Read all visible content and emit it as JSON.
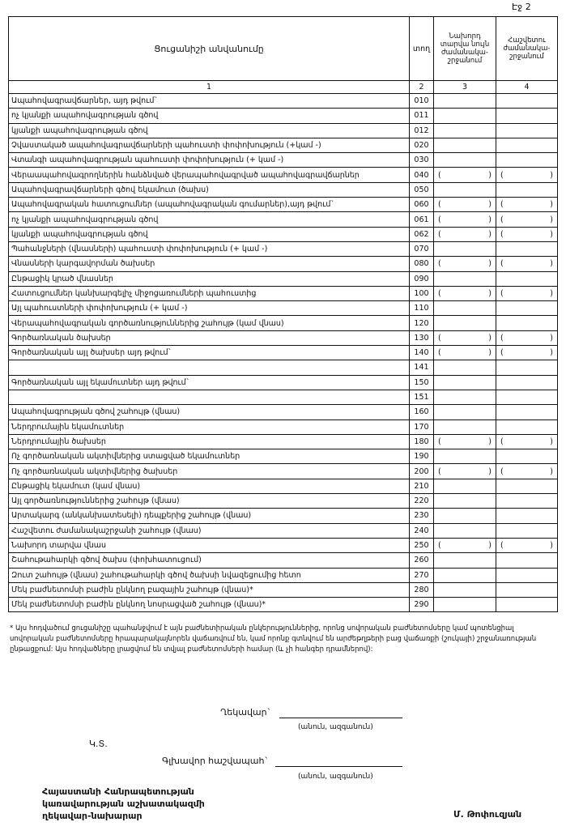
{
  "page_label": "Էջ 2",
  "table": {
    "header": {
      "name": "Ցուցանիշի անվանումը",
      "code": "տող",
      "col3": "Նախորդ տարվա նույն ժամանակա-շրջանում",
      "col4": "Հաշվետու ժամանակա-շրջանում"
    },
    "column_numbers": [
      "1",
      "2",
      "3",
      "4"
    ],
    "rows": [
      {
        "name": "Ապահովագրավճարներ, այդ թվում`",
        "code": "010"
      },
      {
        "name": "ոչ կյանքի ապահովագրության գծով",
        "code": "011"
      },
      {
        "name": "կյանքի ապահովագրության գծով",
        "code": "012"
      },
      {
        "name": "Չվաստակած ապահովագրավճարների պահուստի փոփոխություն (+կամ -)",
        "code": "020"
      },
      {
        "name": "Վտանգի ապահովագրության պահուստի փոփոխություն (+ կամ -)",
        "code": "030"
      },
      {
        "name": "Վերաապահովագրողներին հանձնված վերապահովագրված ապահովագրավճարներ",
        "code": "040",
        "col3": [
          "(",
          ")"
        ],
        "col4": [
          "(",
          ")"
        ]
      },
      {
        "name": "Ապահովագրավճարների գծով եկամուտ (ծախս)",
        "code": "050"
      },
      {
        "name": "Ապահովագրական հատուցումներ (ապահովագրական գումարներ),այդ թվում`",
        "code": "060",
        "col3": [
          "(",
          ")"
        ],
        "col4": [
          "(",
          ")"
        ]
      },
      {
        "name": "ոչ կյանքի ապահովագրության գծով",
        "code": "061",
        "col3": [
          "(",
          ")"
        ],
        "col4": [
          "(",
          ")"
        ]
      },
      {
        "name": "կյանքի ապահովագրության գծով",
        "code": "062",
        "col3": [
          "(",
          ")"
        ],
        "col4": [
          "(",
          ")"
        ]
      },
      {
        "name": "Պահանջների (վնասների) պահուստի փոփոխություն (+ կամ -)",
        "code": "070"
      },
      {
        "name": "Վնասների կարգավորման ծախսեր",
        "code": "080",
        "col3": [
          "(",
          ")"
        ],
        "col4": [
          "(",
          ")"
        ]
      },
      {
        "name": "Ընթացիկ կրած վնասներ",
        "code": "090"
      },
      {
        "name": "Հատուցումներ կանխարգելիչ միջոցառումների պահուստից",
        "code": "100",
        "col3": [
          "(",
          ")"
        ],
        "col4": [
          "(",
          ")"
        ]
      },
      {
        "name": "Այլ պահուստների փոփոխություն (+ կամ -)",
        "code": "110"
      },
      {
        "name": "Վերապահովագրական գործառնություններից շահույթ (կամ վնաս)",
        "code": "120"
      },
      {
        "name": "Գործառնական ծախսեր",
        "code": "130",
        "col3": [
          "(",
          ")"
        ],
        "col4": [
          "(",
          ")"
        ]
      },
      {
        "name": "Գործառնական այլ ծախսեր այդ թվում`",
        "code": "140",
        "col3": [
          "(",
          ")"
        ],
        "col4": [
          "(",
          ")"
        ]
      },
      {
        "code": "141"
      },
      {
        "name": "Գործառնական այլ եկամուտներ այդ թվում`",
        "code": "150"
      },
      {
        "code": "151"
      },
      {
        "name": "Ապահովագրության գծով շահույթ (վնաս)",
        "code": "160"
      },
      {
        "name": "Ներդրումային եկամուտներ",
        "code": "170"
      },
      {
        "name": "Ներդրումային ծախսեր",
        "code": "180",
        "col3": [
          "(",
          ")"
        ],
        "col4": [
          "(",
          ")"
        ]
      },
      {
        "name": "Ոչ գործառնական ակտիվներից ստացված եկամուտներ",
        "code": "190"
      },
      {
        "name": "Ոչ գործառնական ակտիվներից ծախսեր",
        "code": "200",
        "col3": [
          "(",
          ")"
        ],
        "col4": [
          "(",
          ")"
        ]
      },
      {
        "name": "Ընթացիկ եկամուտ (կամ վնաս)",
        "code": "210"
      },
      {
        "name": "Այլ գործառնություններից շահույթ (վնաս)",
        "code": "220"
      },
      {
        "name": "Արտակարգ (անկանխատեսելի) դեպքերից շահույթ (վնաս)",
        "code": "230"
      },
      {
        "name": "Հաշվետու ժամանակաշրջանի շահույթ (վնաս)",
        "code": "240"
      },
      {
        "name": "Նախորդ տարվա վնաս",
        "code": "250",
        "col3": [
          "(",
          ")"
        ],
        "col4": [
          "(",
          ")"
        ]
      },
      {
        "name": "Շահութահարկի գծով ծախս (փոխհատուցում)",
        "code": "260"
      },
      {
        "name": "Զուտ շահույթ (վնաս) շահութահարկի գծով ծախսի նվազեցումից հետո",
        "code": "270"
      },
      {
        "name": "Մեկ բաժնետոմսի բաժին ընկնող բազային շահույթ (վնաս)*",
        "code": "280"
      },
      {
        "name": "Մեկ բաժնետոմսի բաժին ընկնող նոսրացված շահույթ (վնաս)*",
        "code": "290"
      }
    ]
  },
  "footnote": "* Այս հոդվածում ցուցանիշը պահանջվում է այն բաժնետիրական ընկերություններից, որոնց սովորական բաժնետոմսերը կամ պոտենցիալ սովորական բաժնետոմսերը հրապարակայնորեն վաճառվում են, կամ որոնք գտնվում են արժեթղթերի բաց վաճառքի (շուկայի) շրջանառության ընթացքում: Այս հոդվածները լրացվում են տվյալ բաժնետոմսերի համար (և չի հանգեր դրամներով):",
  "signatures": {
    "head": "Ղեկավար`",
    "head_hint": "(անուն, ազգանուն)",
    "seal": "Կ.Տ.",
    "accountant": "Գլխավոր հաշվապահ`",
    "accountant_hint": "(անուն, ազգանուն)"
  },
  "footer": {
    "org_lines": [
      "Հայաստանի Հանրապետության",
      "կառավարության աշխատակազմի",
      "ղեկավար-նախարար"
    ],
    "signer": "Մ. Թոփուզյան"
  }
}
